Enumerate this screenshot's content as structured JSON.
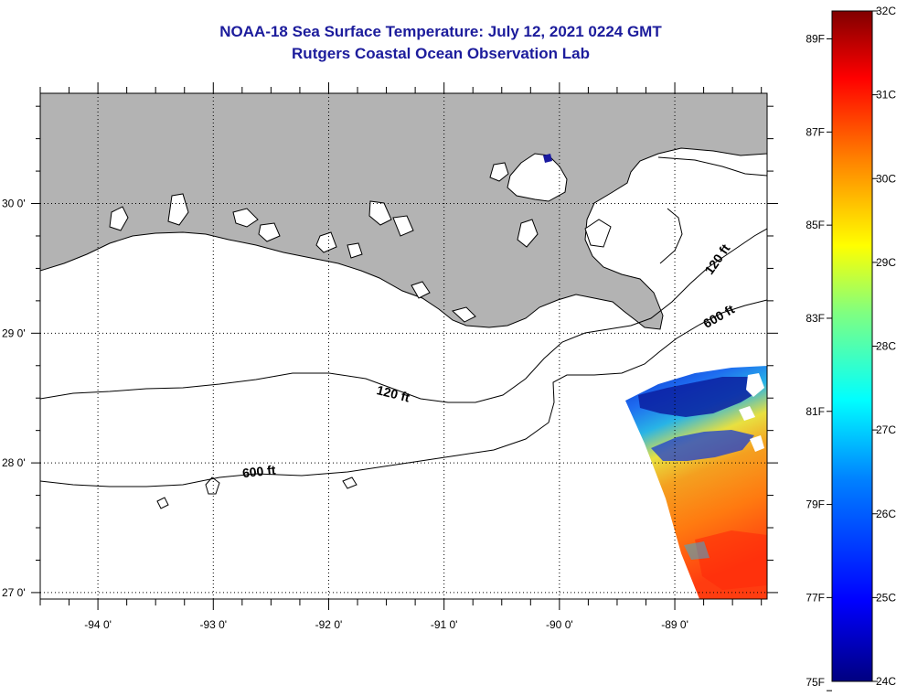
{
  "title": "NOAA-18 Sea Surface Temperature:  July 12, 2021 0224 GMT",
  "subtitle": "Rutgers Coastal Ocean Observation Lab",
  "map": {
    "lon_range": [
      -94.5,
      -88.2
    ],
    "lat_range": [
      26.95,
      30.85
    ],
    "lon_ticks": [
      {
        "value": -94,
        "label": "-94 0'"
      },
      {
        "value": -93,
        "label": "-93 0'"
      },
      {
        "value": -92,
        "label": "-92 0'"
      },
      {
        "value": -91,
        "label": "-91 0'"
      },
      {
        "value": -90,
        "label": "-90 0'"
      },
      {
        "value": -89,
        "label": "-89 0'"
      }
    ],
    "lat_ticks": [
      {
        "value": 30,
        "label": "30 0'"
      },
      {
        "value": 29,
        "label": "29 0'"
      },
      {
        "value": 28,
        "label": "28 0'"
      },
      {
        "value": 27,
        "label": "27 0'"
      }
    ],
    "land_color": "#b3b3b3",
    "contour_labels": [
      {
        "text": "120 ft",
        "lon": -91.45,
        "lat": 28.5
      },
      {
        "text": "600 ft",
        "lon": -92.6,
        "lat": 27.9
      },
      {
        "text": "120 ft",
        "lon": -88.6,
        "lat": 29.55
      },
      {
        "text": "600 ft",
        "lon": -88.6,
        "lat": 29.1
      }
    ]
  },
  "colorbar": {
    "celsius": [
      {
        "value": 32,
        "label": "32C"
      },
      {
        "value": 31,
        "label": "31C"
      },
      {
        "value": 30,
        "label": "30C"
      },
      {
        "value": 29,
        "label": "29C"
      },
      {
        "value": 28,
        "label": "28C"
      },
      {
        "value": 27,
        "label": "27C"
      },
      {
        "value": 26,
        "label": "26C"
      },
      {
        "value": 25,
        "label": "25C"
      },
      {
        "value": 24,
        "label": "24C"
      }
    ],
    "fahrenheit": [
      {
        "value": 89,
        "label": "89F"
      },
      {
        "value": 87,
        "label": "87F"
      },
      {
        "value": 85,
        "label": "85F"
      },
      {
        "value": 83,
        "label": "83F"
      },
      {
        "value": 81,
        "label": "81F"
      },
      {
        "value": 79,
        "label": "79F"
      },
      {
        "value": 77,
        "label": "77F"
      },
      {
        "value": 75,
        "label": "75F"
      }
    ],
    "colors": [
      "#000080",
      "#0000ff",
      "#0080ff",
      "#00ffff",
      "#80ff80",
      "#ffff00",
      "#ff8000",
      "#ff0000",
      "#800000"
    ]
  }
}
